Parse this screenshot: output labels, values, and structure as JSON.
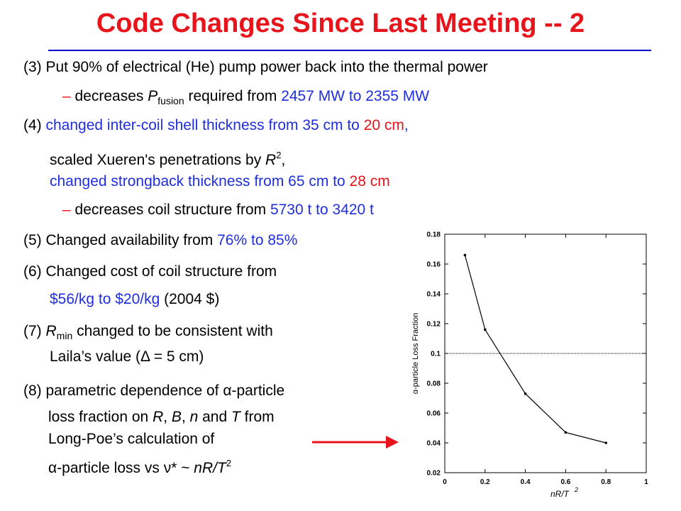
{
  "title": "Code Changes Since Last Meeting -- 2",
  "items": {
    "i3": {
      "line1": "(3) Put 90% of electrical (He) pump power back into the thermal power",
      "dash": "– ",
      "sub_a": "decreases ",
      "p": "P",
      "p_sub": "fusion",
      "sub_b": " required from ",
      "from_to": "2457 MW to 2355 MW"
    },
    "i4": {
      "prefix": "(4) ",
      "a": "changed inter-coil shell thickness from 35 cm to ",
      "a_val": "20 cm",
      "a_end": ",",
      "b1": "scaled Xueren's penetrations by ",
      "b_r": "R",
      "b_sup": "2",
      "b2": ",",
      "c": "changed strongback thickness from 65 cm to ",
      "c_val": "28 cm",
      "d_dash": "– ",
      "d_text": "decreases coil structure from ",
      "d_val": "5730 t to 3420 t"
    },
    "i5": {
      "prefix": "(5) Changed availability from ",
      "val": "76% to 85%"
    },
    "i6": {
      "line1": "(6) Changed cost of coil structure from",
      "val": "$56/kg to $20/kg",
      "end": " (2004 $)"
    },
    "i7": {
      "prefix": "(7) ",
      "r": "R",
      "r_sub": "min",
      "rest": " changed to be consistent with",
      "line2": "Laila’s value (",
      "delta": "Δ",
      "line2_end": " = 5 cm)"
    },
    "i8": {
      "line1a": "(8) parametric dependence of ",
      "alpha": "α",
      "line1b": "-particle",
      "line2a": "loss fraction on ",
      "R": "R",
      "c1": ", ",
      "B": "B",
      "c2": ", ",
      "n": "n",
      "and": " and ",
      "T": "T",
      "line2b": "  from",
      "line3": "Long-Poe’s calculation of",
      "line4a": "-particle loss vs ",
      "nu": "ν",
      "line4b": "* ~ ",
      "expr": "nR/T",
      "expr_sup": "2"
    }
  },
  "colors": {
    "title": "#e8141b",
    "accent_blue": "#1f2ee0",
    "accent_red": "#e8141b",
    "arrow": "#e8141b"
  },
  "chart_data": {
    "type": "line",
    "title": "",
    "xlabel": "nR/T",
    "xlabel_sup": "2",
    "ylabel": "α-particle Loss Fraction",
    "xlim": [
      0,
      1
    ],
    "ylim": [
      0.02,
      0.18
    ],
    "x_ticks": [
      "0",
      "0.2",
      "0.4",
      "0.6",
      "0.8",
      "1"
    ],
    "y_ticks": [
      "0.02",
      "0.04",
      "0.06",
      "0.08",
      "0.1",
      "0.12",
      "0.14",
      "0.16",
      "0.18"
    ],
    "series": [
      {
        "x": [
          0.1,
          0.2,
          0.4,
          0.6,
          0.8
        ],
        "values": [
          0.166,
          0.116,
          0.073,
          0.047,
          0.04
        ]
      }
    ],
    "reference_line": {
      "y": 0.1
    }
  }
}
